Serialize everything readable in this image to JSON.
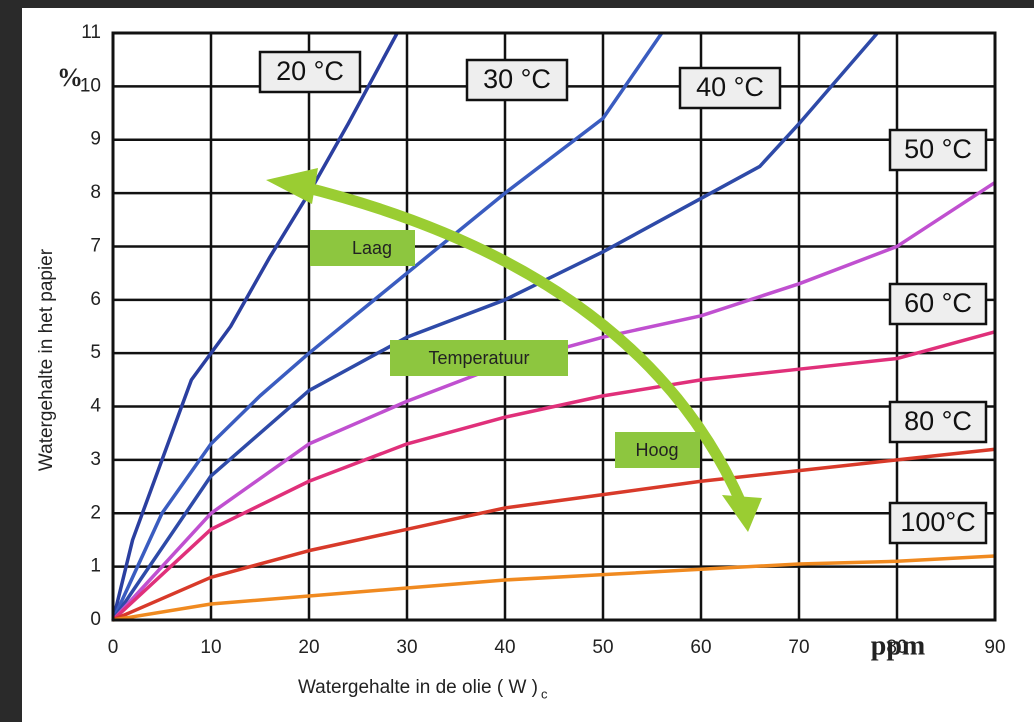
{
  "chart_data": {
    "type": "line",
    "y_unit": "%",
    "x_unit": "ppm",
    "x_label": "Watergehalte in de olie ( W )",
    "x_label_subscript": "c",
    "y_label": "Watergehalte in het papier",
    "annotations": [
      "Laag",
      "Temperatuur",
      "Hoog"
    ],
    "xlim": [
      0,
      90
    ],
    "ylim": [
      0,
      11
    ],
    "xticks": [
      0,
      10,
      20,
      30,
      40,
      50,
      60,
      70,
      80,
      90
    ],
    "yticks": [
      0,
      1,
      2,
      3,
      4,
      5,
      6,
      7,
      8,
      9,
      10,
      11
    ],
    "grid": true,
    "series": [
      {
        "name": "20 °C",
        "color": "#2b3fa0",
        "x": [
          0,
          2,
          5,
          8,
          12,
          16,
          20,
          24,
          29
        ],
        "values": [
          0,
          1.5,
          3,
          4.5,
          5.5,
          6.8,
          8,
          9.3,
          11
        ]
      },
      {
        "name": "30 °C",
        "color": "#3a5cc0",
        "x": [
          0,
          5,
          10,
          15,
          20,
          30,
          40,
          50,
          56
        ],
        "values": [
          0,
          2,
          3.3,
          4.2,
          5,
          6.5,
          8,
          9.4,
          11
        ]
      },
      {
        "name": "40 °C",
        "color": "#2e4aa8",
        "x": [
          0,
          10,
          20,
          30,
          40,
          50,
          60,
          66,
          70,
          78
        ],
        "values": [
          0,
          2.7,
          4.3,
          5.3,
          6,
          6.9,
          7.9,
          8.5,
          9.3,
          11
        ]
      },
      {
        "name": "50 °C",
        "color": "#c050d0",
        "x": [
          0,
          10,
          20,
          30,
          40,
          50,
          60,
          70,
          80,
          90
        ],
        "values": [
          0,
          2,
          3.3,
          4.1,
          4.8,
          5.3,
          5.7,
          6.3,
          7,
          8.2
        ]
      },
      {
        "name": "60 °C",
        "color": "#e0307a",
        "x": [
          0,
          10,
          20,
          30,
          40,
          50,
          60,
          70,
          80,
          90
        ],
        "values": [
          0,
          1.7,
          2.6,
          3.3,
          3.8,
          4.2,
          4.5,
          4.7,
          4.9,
          5.4
        ]
      },
      {
        "name": "80 °C",
        "color": "#d83a2a",
        "x": [
          0,
          10,
          20,
          30,
          40,
          50,
          60,
          70,
          80,
          90
        ],
        "values": [
          0,
          0.8,
          1.3,
          1.7,
          2.1,
          2.35,
          2.6,
          2.8,
          3,
          3.2
        ]
      },
      {
        "name": "100°C",
        "color": "#f08a20",
        "x": [
          0,
          10,
          20,
          30,
          40,
          50,
          60,
          70,
          80,
          90
        ],
        "values": [
          0,
          0.3,
          0.45,
          0.6,
          0.75,
          0.85,
          0.95,
          1.05,
          1.1,
          1.2
        ]
      }
    ]
  }
}
